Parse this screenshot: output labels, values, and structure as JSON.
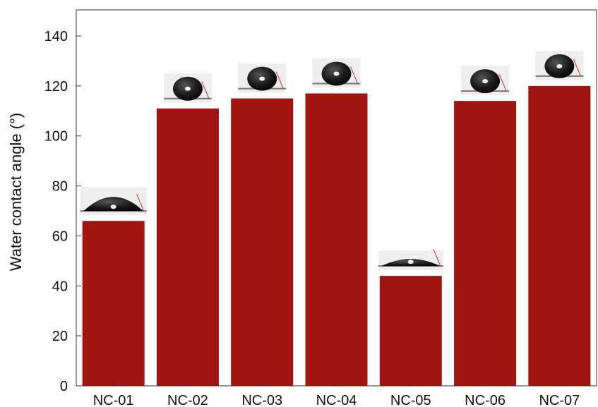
{
  "chart_data": {
    "type": "bar",
    "title": "",
    "xlabel": "",
    "ylabel": "Water contact angle (°)",
    "ylim": [
      0,
      150
    ],
    "yticks": [
      0,
      20,
      40,
      60,
      80,
      100,
      120,
      140
    ],
    "grid": false,
    "legend": "none",
    "categories": [
      "NC-01",
      "NC-02",
      "NC-03",
      "NC-04",
      "NC-05",
      "NC-06",
      "NC-07"
    ],
    "values": [
      66,
      111,
      115,
      117,
      44,
      114,
      120
    ],
    "bar_color": "#a01512",
    "inset_images": "water droplet photograph above each bar"
  }
}
